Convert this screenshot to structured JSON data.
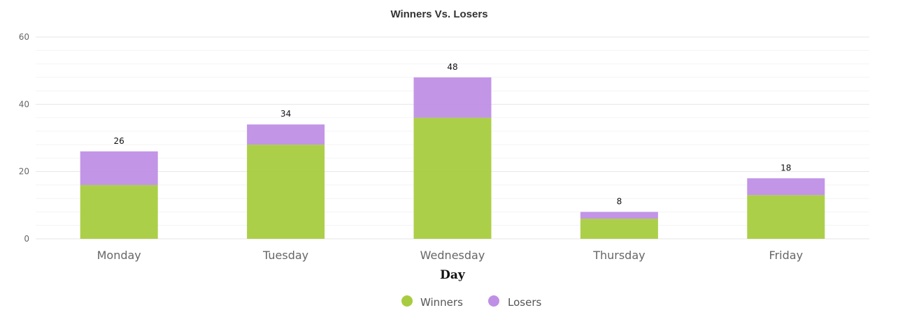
{
  "chart_data": {
    "type": "bar",
    "stacked": true,
    "title": "Winners Vs. Losers",
    "xlabel": "Day",
    "ylabel": "",
    "ylim": [
      0,
      60
    ],
    "yticks": [
      0,
      20,
      40,
      60
    ],
    "grid": true,
    "legend_position": "bottom-center",
    "categories": [
      "Monday",
      "Tuesday",
      "Wednesday",
      "Thursday",
      "Friday"
    ],
    "series": [
      {
        "name": "Winners",
        "color": "#a8cc3f",
        "values": [
          16,
          28,
          36,
          6,
          13
        ]
      },
      {
        "name": "Losers",
        "color": "#bf8fe6",
        "values": [
          10,
          6,
          12,
          2,
          5
        ]
      }
    ],
    "totals": [
      26,
      34,
      48,
      8,
      18
    ]
  }
}
